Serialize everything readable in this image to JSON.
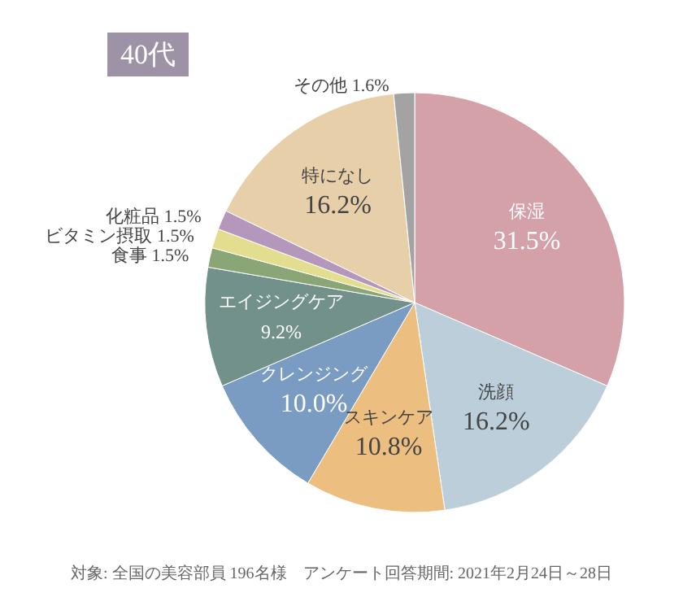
{
  "chart_data": {
    "type": "pie",
    "title": "40代",
    "categories": [
      "保湿",
      "洗顔",
      "スキンケア",
      "クレンジング",
      "エイジングケア",
      "食事",
      "ビタミン摂取",
      "化粧品",
      "特になし",
      "その他"
    ],
    "values": [
      31.5,
      16.2,
      10.8,
      10.0,
      9.2,
      1.5,
      1.5,
      1.5,
      16.2,
      1.6
    ],
    "value_labels": [
      "31.5%",
      "16.2%",
      "10.8%",
      "10.0%",
      "9.2%",
      "1.5%",
      "1.5%",
      "1.5%",
      "16.2%",
      "1.6%"
    ],
    "colors": [
      "#d4a1a9",
      "#bdcedb",
      "#ecbf80",
      "#7b9cc2",
      "#72918a",
      "#8aa677",
      "#e2dd8f",
      "#b497bb",
      "#e6cfa9",
      "#a3a3a3"
    ],
    "legend": false,
    "annotations": [
      "対象: 全国の美容部員 196名様　アンケート回答期間: 2021年2月24日～28日"
    ]
  }
}
